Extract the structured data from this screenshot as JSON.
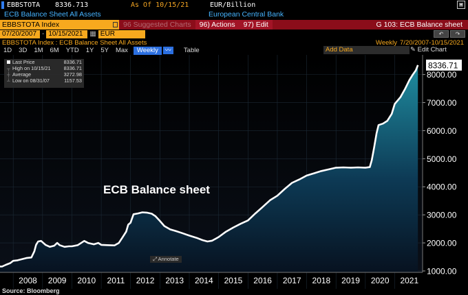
{
  "header": {
    "ticker": "EBBSTOTA",
    "last_price": "8336.713",
    "as_of": "As Of 10/15/21",
    "units": "EUR/Billion",
    "snapshot_icon": "camera-icon"
  },
  "description": {
    "name": "ECB Balance Sheet All Assets",
    "source": "European Central Bank"
  },
  "command_bar": {
    "security_field": "EBBSTOTA Index",
    "suggested": "96 Suggested Charts",
    "actions": "96) Actions",
    "edit": "97) Edit",
    "function_title": "G 103: ECB Balance sheet"
  },
  "range": {
    "start": "07/20/2007",
    "end": "10/15/2021",
    "currency": "EUR"
  },
  "toolbar": {
    "periods": [
      "1D",
      "3D",
      "1M",
      "6M",
      "YTD",
      "1Y",
      "5Y",
      "Max"
    ],
    "frequency": "Weekly",
    "table_label": "Table",
    "add_data": "Add Data",
    "edit_chart": "Edit Chart"
  },
  "chart_header": {
    "title": "EBBSTOTA Index : ECB Balance Sheet All Assets",
    "frequency": "Weekly",
    "date_range": "7/20/2007-10/15/2021"
  },
  "legend": {
    "last_price_label": "Last Price",
    "last_price": "8336.71",
    "high_label": "High on 10/15/21",
    "high": "8336.71",
    "average_label": "Average",
    "average": "3272.98",
    "low_label": "Low on 08/31/07",
    "low": "1157.53"
  },
  "annotate_label": "Annotate",
  "source_label": "Source: Bloomberg",
  "chart_data": {
    "type": "area",
    "title": "ECB Balance sheet",
    "last_value_label": "8336.71",
    "y_ticks": [
      "1000.00",
      "2000.00",
      "3000.00",
      "4000.00",
      "5000.00",
      "6000.00",
      "7000.00",
      "8000.00"
    ],
    "ylim": [
      950,
      8700
    ],
    "x_ticks": [
      "2008",
      "2009",
      "2010",
      "2011",
      "2012",
      "2013",
      "2014",
      "2015",
      "2016",
      "2017",
      "2018",
      "2019",
      "2020",
      "2021"
    ],
    "xlim": [
      2007.55,
      2021.95
    ],
    "series": [
      {
        "points": [
          [
            2007.55,
            1160
          ],
          [
            2007.62,
            1157.53
          ],
          [
            2007.75,
            1220
          ],
          [
            2007.9,
            1280
          ],
          [
            2008.0,
            1360
          ],
          [
            2008.15,
            1380
          ],
          [
            2008.3,
            1420
          ],
          [
            2008.45,
            1460
          ],
          [
            2008.62,
            1480
          ],
          [
            2008.72,
            1700
          ],
          [
            2008.78,
            1930
          ],
          [
            2008.85,
            2050
          ],
          [
            2008.95,
            2070
          ],
          [
            2009.1,
            1930
          ],
          [
            2009.25,
            1860
          ],
          [
            2009.4,
            1900
          ],
          [
            2009.5,
            2000
          ],
          [
            2009.58,
            1920
          ],
          [
            2009.75,
            1860
          ],
          [
            2009.9,
            1880
          ],
          [
            2010.0,
            1880
          ],
          [
            2010.2,
            1920
          ],
          [
            2010.42,
            2070
          ],
          [
            2010.55,
            2000
          ],
          [
            2010.75,
            1950
          ],
          [
            2010.9,
            2000
          ],
          [
            2011.0,
            1930
          ],
          [
            2011.2,
            1920
          ],
          [
            2011.45,
            1910
          ],
          [
            2011.6,
            2000
          ],
          [
            2011.72,
            2190
          ],
          [
            2011.85,
            2400
          ],
          [
            2011.92,
            2650
          ],
          [
            2012.0,
            2720
          ],
          [
            2012.1,
            3020
          ],
          [
            2012.25,
            3050
          ],
          [
            2012.4,
            3090
          ],
          [
            2012.55,
            3080
          ],
          [
            2012.72,
            3040
          ],
          [
            2012.85,
            2950
          ],
          [
            2013.0,
            2780
          ],
          [
            2013.15,
            2600
          ],
          [
            2013.35,
            2480
          ],
          [
            2013.55,
            2420
          ],
          [
            2013.75,
            2350
          ],
          [
            2014.0,
            2260
          ],
          [
            2014.25,
            2180
          ],
          [
            2014.45,
            2100
          ],
          [
            2014.62,
            2050
          ],
          [
            2014.78,
            2080
          ],
          [
            2014.92,
            2160
          ],
          [
            2015.0,
            2210
          ],
          [
            2015.25,
            2400
          ],
          [
            2015.5,
            2550
          ],
          [
            2015.75,
            2680
          ],
          [
            2016.0,
            2800
          ],
          [
            2016.25,
            3050
          ],
          [
            2016.5,
            3280
          ],
          [
            2016.75,
            3520
          ],
          [
            2017.0,
            3680
          ],
          [
            2017.25,
            3920
          ],
          [
            2017.5,
            4140
          ],
          [
            2017.75,
            4260
          ],
          [
            2018.0,
            4400
          ],
          [
            2018.25,
            4480
          ],
          [
            2018.5,
            4560
          ],
          [
            2018.75,
            4620
          ],
          [
            2019.0,
            4680
          ],
          [
            2019.25,
            4690
          ],
          [
            2019.5,
            4680
          ],
          [
            2019.75,
            4690
          ],
          [
            2020.0,
            4680
          ],
          [
            2020.15,
            4700
          ],
          [
            2020.22,
            4950
          ],
          [
            2020.3,
            5400
          ],
          [
            2020.38,
            5900
          ],
          [
            2020.45,
            6200
          ],
          [
            2020.6,
            6250
          ],
          [
            2020.75,
            6350
          ],
          [
            2020.9,
            6600
          ],
          [
            2021.0,
            6950
          ],
          [
            2021.2,
            7200
          ],
          [
            2021.35,
            7480
          ],
          [
            2021.5,
            7800
          ],
          [
            2021.62,
            8000
          ],
          [
            2021.72,
            8150
          ],
          [
            2021.79,
            8336.71
          ]
        ]
      }
    ]
  },
  "colors": {
    "accent_orange": "#f7a91e",
    "command_bar_red": "#8b0d1a",
    "link_blue": "#46b4ff",
    "area_top": "#1f8da0",
    "area_bottom": "#071220"
  }
}
